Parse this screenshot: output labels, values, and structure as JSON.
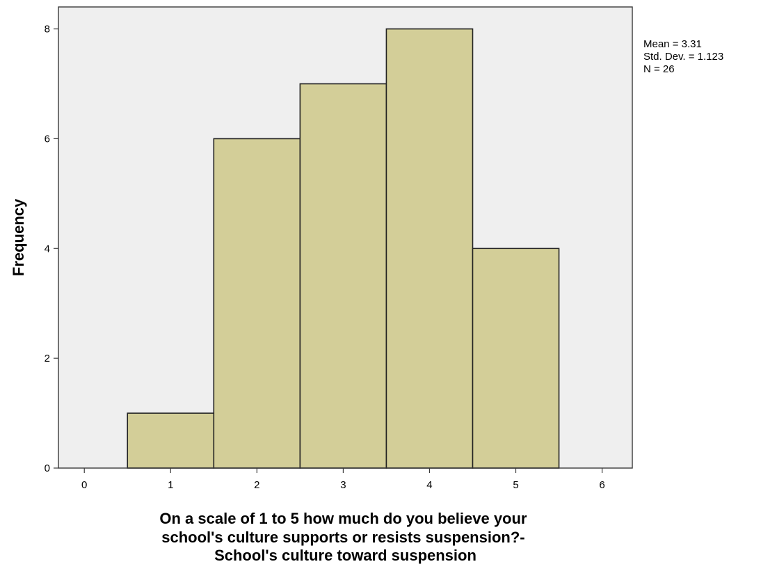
{
  "chart_data": {
    "type": "bar",
    "chart_kind": "histogram",
    "title": "",
    "xlabel_lines": [
      "On a scale of 1 to 5 how much do you believe your",
      "school's culture supports or resists suspension?-",
      "School's culture toward suspension"
    ],
    "ylabel": "Frequency",
    "bins": [
      {
        "center": 1,
        "value": 1
      },
      {
        "center": 2,
        "value": 6
      },
      {
        "center": 3,
        "value": 7
      },
      {
        "center": 4,
        "value": 8
      },
      {
        "center": 5,
        "value": 4
      }
    ],
    "bin_width": 1,
    "xlim": [
      -0.3,
      6.35
    ],
    "ylim": [
      0,
      8.4
    ],
    "xticks": [
      0,
      1,
      2,
      3,
      4,
      5,
      6
    ],
    "yticks": [
      0,
      2,
      4,
      6,
      8
    ],
    "grid": false,
    "stats": {
      "lines": [
        "Mean = 3.31",
        "Std. Dev. = 1.123",
        "N = 26"
      ],
      "placement": "top-right outside plot"
    },
    "colors": {
      "plot_background": "#efefef",
      "bar_fill": "#d3ce98",
      "bar_stroke": "#222222",
      "frame": "#3a3a3a"
    }
  }
}
